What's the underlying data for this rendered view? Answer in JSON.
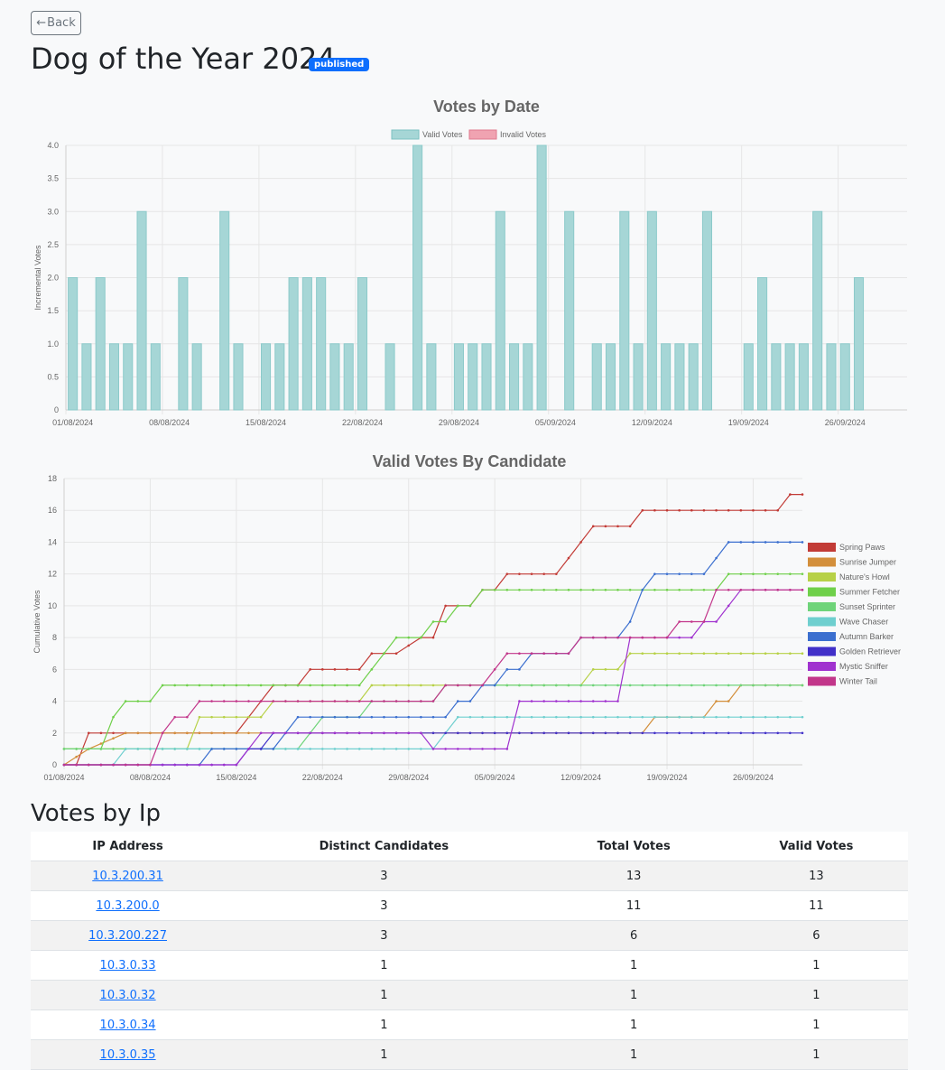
{
  "header": {
    "back_label": "Back",
    "title": "Dog of the Year 2024",
    "status_badge": "published"
  },
  "chart_data": [
    {
      "type": "bar",
      "title": "Votes by Date",
      "xlabel": "",
      "ylabel": "Incremental Votes",
      "ylim": [
        0,
        4
      ],
      "yticks": [
        "0",
        "0.5",
        "1.0",
        "1.5",
        "2.0",
        "2.5",
        "3.0",
        "3.5",
        "4.0"
      ],
      "xtick_labels": [
        "01/08/2024",
        "08/08/2024",
        "15/08/2024",
        "22/08/2024",
        "29/08/2024",
        "05/09/2024",
        "12/09/2024",
        "19/09/2024",
        "26/09/2024"
      ],
      "legend_position": "top",
      "categories": [
        "01/08",
        "02/08",
        "03/08",
        "04/08",
        "05/08",
        "06/08",
        "07/08",
        "08/08",
        "09/08",
        "10/08",
        "11/08",
        "12/08",
        "13/08",
        "14/08",
        "15/08",
        "16/08",
        "17/08",
        "18/08",
        "19/08",
        "20/08",
        "21/08",
        "22/08",
        "23/08",
        "24/08",
        "25/08",
        "26/08",
        "27/08",
        "28/08",
        "29/08",
        "30/08",
        "31/08",
        "01/09",
        "02/09",
        "03/09",
        "04/09",
        "05/09",
        "06/09",
        "07/09",
        "08/09",
        "09/09",
        "10/09",
        "11/09",
        "12/09",
        "13/09",
        "14/09",
        "15/09",
        "16/09",
        "17/09",
        "18/09",
        "19/09",
        "20/09",
        "21/09",
        "22/09",
        "23/09",
        "24/09",
        "25/09",
        "26/09",
        "27/09",
        "28/09",
        "29/09",
        "30/09"
      ],
      "series": [
        {
          "name": "Valid Votes",
          "color": "#a6d6d6",
          "values": [
            2,
            1,
            2,
            1,
            1,
            3,
            1,
            0,
            2,
            1,
            0,
            3,
            1,
            0,
            1,
            1,
            2,
            2,
            2,
            1,
            1,
            2,
            0,
            1,
            0,
            4,
            1,
            0,
            1,
            1,
            1,
            3,
            1,
            1,
            4,
            0,
            3,
            0,
            1,
            1,
            3,
            1,
            3,
            1,
            1,
            1,
            3,
            0,
            0,
            1,
            2,
            1,
            1,
            1,
            3,
            1,
            1,
            2,
            0,
            0,
            0
          ]
        },
        {
          "name": "Invalid Votes",
          "color": "#f0a3b1",
          "values": [
            0,
            0,
            0,
            0,
            0,
            0,
            0,
            0,
            0,
            0,
            0,
            0,
            0,
            0,
            0,
            0,
            0,
            0,
            0,
            0,
            0,
            0,
            0,
            0,
            0,
            0,
            0,
            0,
            0,
            0,
            0,
            0,
            0,
            0,
            0,
            0,
            0,
            0,
            0,
            0,
            0,
            0,
            0,
            0,
            0,
            0,
            0,
            0,
            0,
            0,
            0,
            0,
            0,
            0,
            0,
            0,
            0,
            0,
            0,
            0,
            0
          ]
        }
      ]
    },
    {
      "type": "line",
      "title": "Valid Votes By Candidate",
      "xlabel": "",
      "ylabel": "Cumulative Votes",
      "ylim": [
        0,
        18
      ],
      "yticks": [
        "0",
        "2",
        "4",
        "6",
        "8",
        "10",
        "12",
        "14",
        "16",
        "18"
      ],
      "xtick_labels": [
        "01/08/2024",
        "08/08/2024",
        "15/08/2024",
        "22/08/2024",
        "29/08/2024",
        "05/09/2024",
        "12/09/2024",
        "19/09/2024",
        "26/09/2024"
      ],
      "legend_position": "right",
      "x_start": "01/08/2024",
      "x_end": "30/09/2024",
      "series": [
        {
          "name": "Spring Paws",
          "color": "#c23b36",
          "points": [
            [
              0,
              0
            ],
            [
              1,
              0
            ],
            [
              2,
              2
            ],
            [
              9,
              2
            ],
            [
              14,
              2
            ],
            [
              16,
              4
            ],
            [
              17,
              5
            ],
            [
              19,
              5
            ],
            [
              20,
              6
            ],
            [
              24,
              6
            ],
            [
              25,
              7
            ],
            [
              27,
              7
            ],
            [
              29,
              8
            ],
            [
              30,
              8
            ],
            [
              31,
              10
            ],
            [
              33,
              10
            ],
            [
              34,
              11
            ],
            [
              35,
              11
            ],
            [
              36,
              12
            ],
            [
              40,
              12
            ],
            [
              41,
              13
            ],
            [
              42,
              14
            ],
            [
              43,
              15
            ],
            [
              46,
              15
            ],
            [
              47,
              16
            ],
            [
              58,
              16
            ],
            [
              59,
              17
            ],
            [
              60,
              17
            ]
          ]
        },
        {
          "name": "Sunrise Jumper",
          "color": "#d38f3b",
          "points": [
            [
              0,
              0
            ],
            [
              2,
              1
            ],
            [
              5,
              2
            ],
            [
              47,
              2
            ],
            [
              48,
              3
            ],
            [
              52,
              3
            ],
            [
              53,
              4
            ],
            [
              54,
              4
            ],
            [
              55,
              5
            ],
            [
              60,
              5
            ]
          ]
        },
        {
          "name": "Nature's Howl",
          "color": "#b7d147",
          "points": [
            [
              0,
              1
            ],
            [
              10,
              1
            ],
            [
              11,
              3
            ],
            [
              16,
              3
            ],
            [
              17,
              4
            ],
            [
              24,
              4
            ],
            [
              25,
              5
            ],
            [
              42,
              5
            ],
            [
              43,
              6
            ],
            [
              45,
              6
            ],
            [
              46,
              7
            ],
            [
              60,
              7
            ]
          ]
        },
        {
          "name": "Summer Fetcher",
          "color": "#6fd04a",
          "points": [
            [
              0,
              1
            ],
            [
              3,
              1
            ],
            [
              4,
              3
            ],
            [
              5,
              4
            ],
            [
              7,
              4
            ],
            [
              8,
              5
            ],
            [
              24,
              5
            ],
            [
              25,
              6
            ],
            [
              26,
              7
            ],
            [
              27,
              8
            ],
            [
              29,
              8
            ],
            [
              30,
              9
            ],
            [
              31,
              9
            ],
            [
              32,
              10
            ],
            [
              33,
              10
            ],
            [
              34,
              11
            ],
            [
              53,
              11
            ],
            [
              54,
              12
            ],
            [
              60,
              12
            ]
          ]
        },
        {
          "name": "Sunset Sprinter",
          "color": "#6fd47a",
          "points": [
            [
              0,
              1
            ],
            [
              19,
              1
            ],
            [
              20,
              2
            ],
            [
              21,
              3
            ],
            [
              24,
              3
            ],
            [
              25,
              4
            ],
            [
              30,
              4
            ],
            [
              31,
              5
            ],
            [
              60,
              5
            ]
          ]
        },
        {
          "name": "Wave Chaser",
          "color": "#6fcfcf",
          "points": [
            [
              0,
              0
            ],
            [
              4,
              0
            ],
            [
              5,
              1
            ],
            [
              30,
              1
            ],
            [
              31,
              2
            ],
            [
              32,
              3
            ],
            [
              60,
              3
            ]
          ]
        },
        {
          "name": "Autumn Barker",
          "color": "#3b6fcf",
          "points": [
            [
              0,
              0
            ],
            [
              11,
              0
            ],
            [
              12,
              1
            ],
            [
              17,
              1
            ],
            [
              18,
              2
            ],
            [
              19,
              3
            ],
            [
              31,
              3
            ],
            [
              32,
              4
            ],
            [
              33,
              4
            ],
            [
              34,
              5
            ],
            [
              35,
              5
            ],
            [
              36,
              6
            ],
            [
              37,
              6
            ],
            [
              38,
              7
            ],
            [
              41,
              7
            ],
            [
              42,
              8
            ],
            [
              45,
              8
            ],
            [
              46,
              9
            ],
            [
              47,
              11
            ],
            [
              48,
              12
            ],
            [
              52,
              12
            ],
            [
              53,
              13
            ],
            [
              54,
              14
            ],
            [
              60,
              14
            ]
          ]
        },
        {
          "name": "Golden Retriever",
          "color": "#4130c9",
          "points": [
            [
              0,
              0
            ],
            [
              14,
              0
            ],
            [
              15,
              1
            ],
            [
              16,
              1
            ],
            [
              17,
              2
            ],
            [
              60,
              2
            ]
          ]
        },
        {
          "name": "Mystic Sniffer",
          "color": "#a032cf",
          "points": [
            [
              0,
              0
            ],
            [
              14,
              0
            ],
            [
              15,
              1
            ],
            [
              16,
              2
            ],
            [
              29,
              2
            ],
            [
              30,
              1
            ],
            [
              36,
              1
            ],
            [
              37,
              4
            ],
            [
              45,
              4
            ],
            [
              46,
              8
            ],
            [
              51,
              8
            ],
            [
              52,
              9
            ],
            [
              53,
              9
            ],
            [
              54,
              10
            ],
            [
              55,
              11
            ],
            [
              60,
              11
            ]
          ]
        },
        {
          "name": "Winter Tail",
          "color": "#c2368a",
          "points": [
            [
              0,
              0
            ],
            [
              7,
              0
            ],
            [
              8,
              2
            ],
            [
              9,
              3
            ],
            [
              10,
              3
            ],
            [
              11,
              4
            ],
            [
              30,
              4
            ],
            [
              31,
              5
            ],
            [
              34,
              5
            ],
            [
              35,
              6
            ],
            [
              36,
              7
            ],
            [
              41,
              7
            ],
            [
              42,
              8
            ],
            [
              49,
              8
            ],
            [
              50,
              9
            ],
            [
              52,
              9
            ],
            [
              53,
              11
            ],
            [
              60,
              11
            ]
          ]
        }
      ]
    }
  ],
  "votes_by_ip": {
    "title": "Votes by Ip",
    "columns": [
      "IP Address",
      "Distinct Candidates",
      "Total Votes",
      "Valid Votes"
    ],
    "rows": [
      [
        "10.3.200.31",
        "3",
        "13",
        "13"
      ],
      [
        "10.3.200.0",
        "3",
        "11",
        "11"
      ],
      [
        "10.3.200.227",
        "3",
        "6",
        "6"
      ],
      [
        "10.3.0.33",
        "1",
        "1",
        "1"
      ],
      [
        "10.3.0.32",
        "1",
        "1",
        "1"
      ],
      [
        "10.3.0.34",
        "1",
        "1",
        "1"
      ],
      [
        "10.3.0.35",
        "1",
        "1",
        "1"
      ]
    ]
  }
}
